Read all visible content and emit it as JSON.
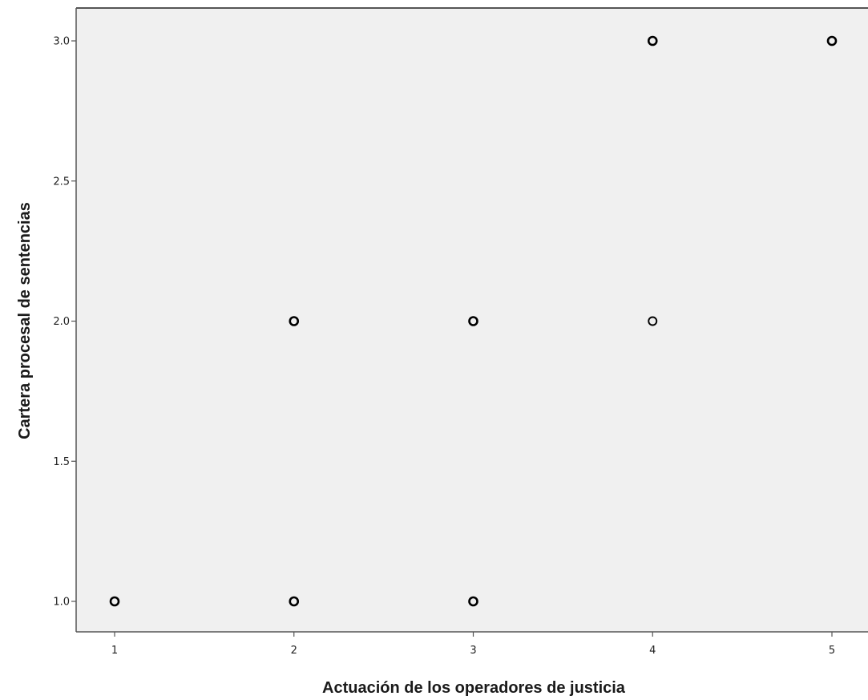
{
  "chart_data": {
    "type": "scatter",
    "xlabel": "Actuación de los operadores de justicia",
    "ylabel": "Cartera procesal de sentencias",
    "xlim": [
      0.78,
      5.2
    ],
    "ylim": [
      0.89,
      3.12
    ],
    "x_ticks": [
      1,
      2,
      3,
      4,
      5
    ],
    "y_ticks": [
      1.0,
      1.5,
      2.0,
      2.5,
      3.0
    ],
    "x_tick_labels": [
      "1",
      "2",
      "3",
      "4",
      "5"
    ],
    "y_tick_labels": [
      "1.0",
      "1.5",
      "2.0",
      "2.5",
      "3.0"
    ],
    "grid": false,
    "colors": {
      "plot_background": "#f0f0f0",
      "marker_stroke": "#000000",
      "axis": "#555555"
    },
    "points": [
      {
        "x": 1,
        "y": 1.0,
        "heavy": true
      },
      {
        "x": 2,
        "y": 1.0,
        "heavy": true
      },
      {
        "x": 3,
        "y": 1.0,
        "heavy": true
      },
      {
        "x": 2,
        "y": 2.0,
        "heavy": true
      },
      {
        "x": 3,
        "y": 2.0,
        "heavy": true
      },
      {
        "x": 4,
        "y": 2.0,
        "heavy": false
      },
      {
        "x": 4,
        "y": 3.0,
        "heavy": true
      },
      {
        "x": 5,
        "y": 3.0,
        "heavy": true
      }
    ]
  }
}
